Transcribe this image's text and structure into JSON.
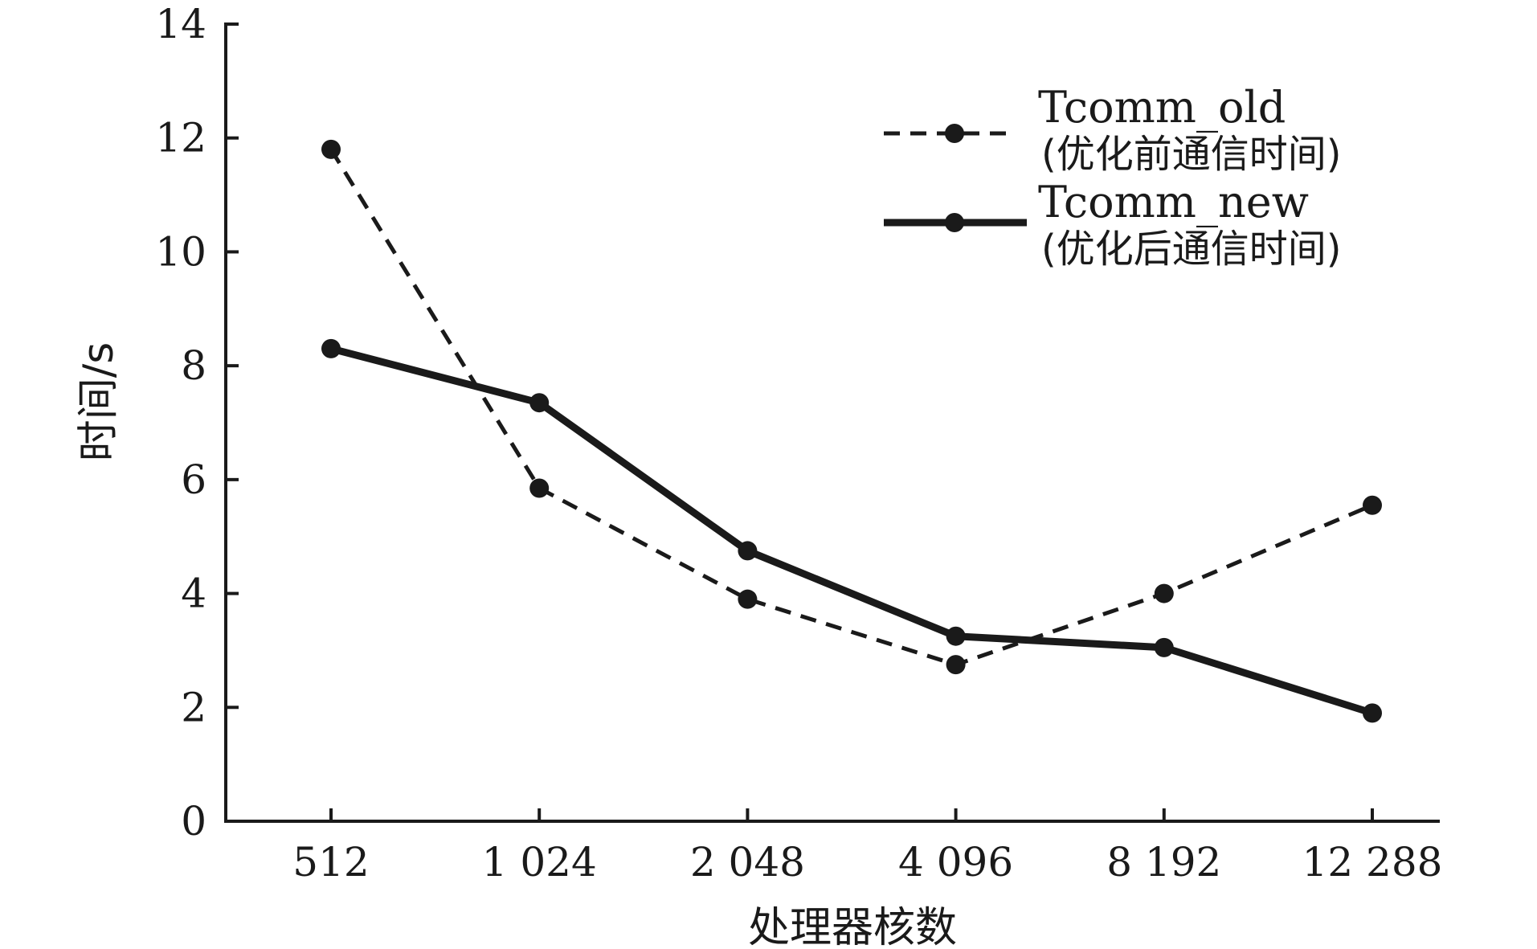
{
  "chart_data": {
    "type": "line",
    "title": "",
    "xlabel": "处理器核数",
    "ylabel": "时间/s",
    "categories": [
      "512",
      "1 024",
      "2 048",
      "4 096",
      "8 192",
      "12 288"
    ],
    "ylim": [
      0,
      14
    ],
    "yticks": [
      "0",
      "2",
      "4",
      "6",
      "8",
      "10",
      "12",
      "14"
    ],
    "grid": false,
    "legend_position": "top-right",
    "series": [
      {
        "name": "Tcomm_old",
        "description": "(优化前通信时间)",
        "line_style": "dashed",
        "color": "#1a1a1a",
        "values": [
          11.8,
          5.85,
          3.9,
          2.75,
          4.0,
          5.55
        ]
      },
      {
        "name": "Tcomm_new",
        "description": "(优化后通信时间)",
        "line_style": "solid",
        "color": "#1a1a1a",
        "values": [
          8.3,
          7.35,
          4.75,
          3.25,
          3.05,
          1.9
        ]
      }
    ]
  }
}
